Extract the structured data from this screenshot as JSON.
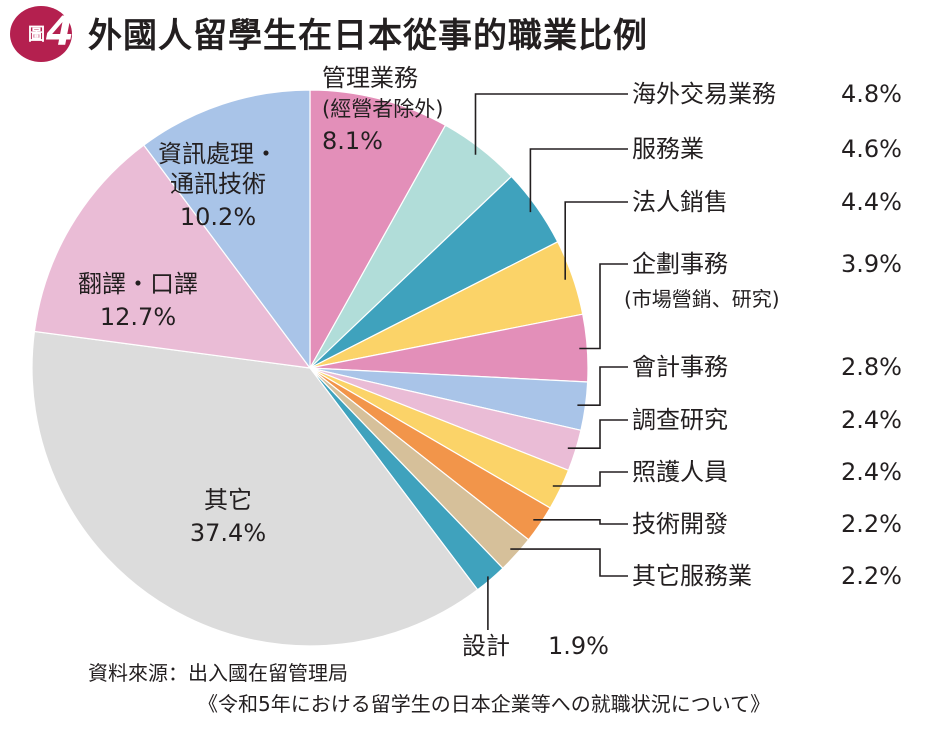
{
  "figure_label": {
    "prefix": "圖",
    "number": "4"
  },
  "title": "外國人留學生在日本從事的職業比例",
  "source": {
    "line1": "資料來源：出入國在留管理局",
    "line2": "《令和5年における留学生の日本企業等への就職状況について》"
  },
  "chart_data": {
    "type": "pie",
    "title": "外國人留學生在日本從事的職業比例",
    "unit": "%",
    "start": "12 o'clock, clockwise",
    "slices": [
      {
        "label": "管理業務",
        "sublabel": "(經營者除外)",
        "value": 8.1,
        "color": "#e38fb9",
        "label_placement": "inside"
      },
      {
        "label": "海外交易業務",
        "value": 4.8,
        "color": "#b1ddd9",
        "label_placement": "callout"
      },
      {
        "label": "服務業",
        "value": 4.6,
        "color": "#3fa2bd",
        "label_placement": "callout"
      },
      {
        "label": "法人銷售",
        "value": 4.4,
        "color": "#fbd368",
        "label_placement": "callout"
      },
      {
        "label": "企劃事務",
        "sublabel": "(市場營銷、研究)",
        "value": 3.9,
        "color": "#e38fb9",
        "label_placement": "callout"
      },
      {
        "label": "會計事務",
        "value": 2.8,
        "color": "#a9c4e8",
        "label_placement": "callout"
      },
      {
        "label": "調查研究",
        "value": 2.4,
        "color": "#eabcd6",
        "label_placement": "callout"
      },
      {
        "label": "照護人員",
        "value": 2.4,
        "color": "#fbd368",
        "label_placement": "callout"
      },
      {
        "label": "技術開發",
        "value": 2.2,
        "color": "#f2954a",
        "label_placement": "callout"
      },
      {
        "label": "其它服務業",
        "value": 2.2,
        "color": "#d6c09a",
        "label_placement": "callout"
      },
      {
        "label": "設計",
        "value": 1.9,
        "color": "#3fa2bd",
        "label_placement": "callout"
      },
      {
        "label": "其它",
        "value": 37.4,
        "color": "#dcdcdc",
        "label_placement": "inside"
      },
      {
        "label": "翻譯・口譯",
        "value": 12.7,
        "color": "#eabcd6",
        "label_placement": "inside"
      },
      {
        "label": "資訊處理・",
        "sublabel": "通訊技術",
        "value": 10.2,
        "color": "#a9c4e8",
        "label_placement": "inside"
      }
    ]
  }
}
